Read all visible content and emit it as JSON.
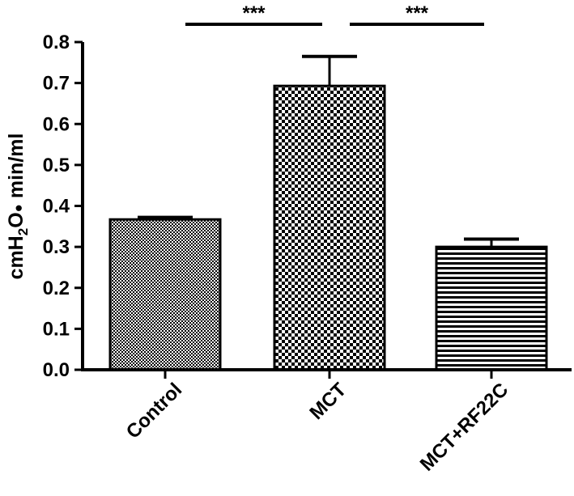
{
  "chart_data": {
    "type": "bar",
    "title": "",
    "xlabel": "",
    "ylabel": {
      "prefix": "cmH",
      "subscript": "2",
      "middle": "O",
      "bullet": "●",
      "suffix": " min/ml"
    },
    "categories": [
      "Control",
      "MCT",
      "MCT+RF22C"
    ],
    "values": [
      0.367,
      0.693,
      0.3
    ],
    "errors": [
      0.005,
      0.072,
      0.019
    ],
    "ylim": [
      0,
      0.8
    ],
    "yticks": [
      0.0,
      0.1,
      0.2,
      0.3,
      0.4,
      0.5,
      0.6,
      0.7,
      0.8
    ],
    "ytick_labels": [
      "0.0",
      "0.1",
      "0.2",
      "0.3",
      "0.4",
      "0.5",
      "0.6",
      "0.7",
      "0.8"
    ],
    "grid": false,
    "legend": "none",
    "patterns": [
      "fine-checker",
      "coarse-checker",
      "horizontal-stripes"
    ],
    "significance": [
      {
        "from": 0,
        "to": 1,
        "label": "***"
      },
      {
        "from": 1,
        "to": 2,
        "label": "***"
      }
    ],
    "colors": {
      "axis": "#000000",
      "fill_dark": "#000000",
      "fill_light": "#ffffff"
    }
  }
}
